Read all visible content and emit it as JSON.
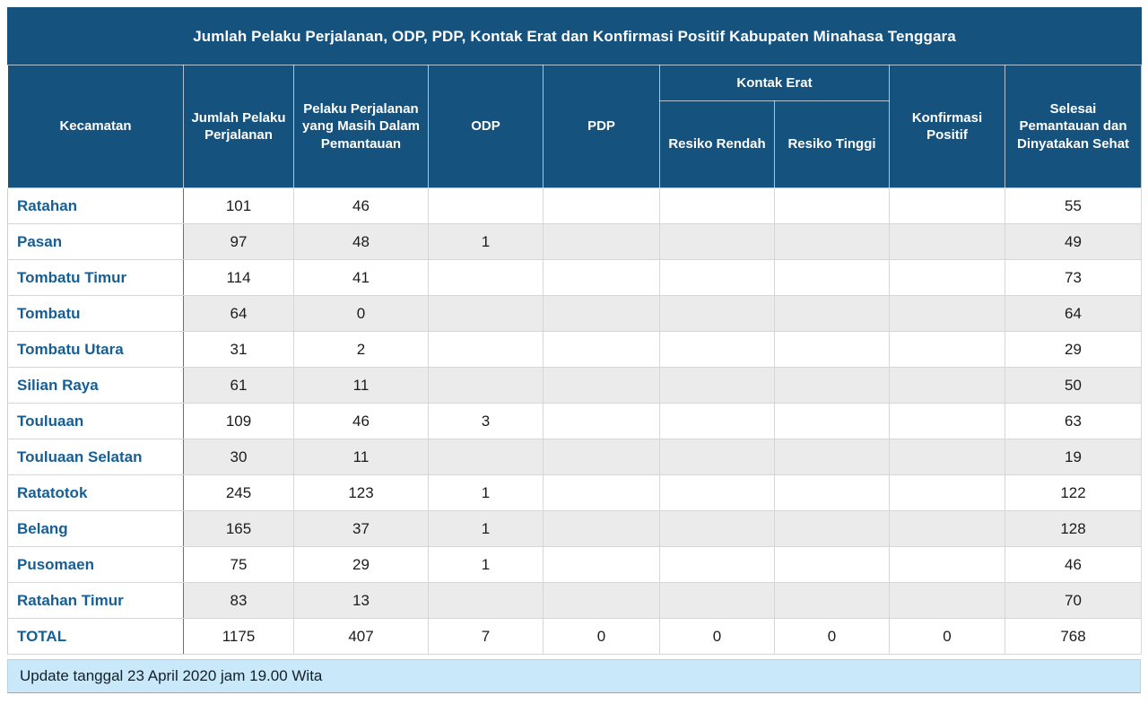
{
  "title": "Jumlah Pelaku Perjalanan, ODP, PDP, Kontak Erat dan Konfirmasi Positif Kabupaten Minahasa Tenggara",
  "table": {
    "header": {
      "kecamatan": "Kecamatan",
      "jumlah_pelaku_perjalanan": "Jumlah Pelaku Perjalanan",
      "pelaku_masih_pemantauan": "Pelaku Perjalanan yang Masih Dalam Pemantauan",
      "odp": "ODP",
      "pdp": "PDP",
      "kontak_erat": "Kontak Erat",
      "resiko_rendah": "Resiko Rendah",
      "resiko_tinggi": "Resiko Tinggi",
      "konfirmasi_positif": "Konfirmasi Positif",
      "selesai": "Selesai Pemantauan dan Dinyatakan Sehat"
    },
    "rows": [
      {
        "kecamatan": "Ratahan",
        "values": [
          "101",
          "46",
          "",
          "",
          "",
          "",
          "",
          "55"
        ]
      },
      {
        "kecamatan": "Pasan",
        "values": [
          "97",
          "48",
          "1",
          "",
          "",
          "",
          "",
          "49"
        ]
      },
      {
        "kecamatan": "Tombatu Timur",
        "values": [
          "114",
          "41",
          "",
          "",
          "",
          "",
          "",
          "73"
        ]
      },
      {
        "kecamatan": "Tombatu",
        "values": [
          "64",
          "0",
          "",
          "",
          "",
          "",
          "",
          "64"
        ]
      },
      {
        "kecamatan": "Tombatu Utara",
        "values": [
          "31",
          "2",
          "",
          "",
          "",
          "",
          "",
          "29"
        ]
      },
      {
        "kecamatan": "Silian Raya",
        "values": [
          "61",
          "11",
          "",
          "",
          "",
          "",
          "",
          "50"
        ]
      },
      {
        "kecamatan": "Touluaan",
        "values": [
          "109",
          "46",
          "3",
          "",
          "",
          "",
          "",
          "63"
        ]
      },
      {
        "kecamatan": "Touluaan Selatan",
        "values": [
          "30",
          "11",
          "",
          "",
          "",
          "",
          "",
          "19"
        ]
      },
      {
        "kecamatan": "Ratatotok",
        "values": [
          "245",
          "123",
          "1",
          "",
          "",
          "",
          "",
          "122"
        ]
      },
      {
        "kecamatan": "Belang",
        "values": [
          "165",
          "37",
          "1",
          "",
          "",
          "",
          "",
          "128"
        ]
      },
      {
        "kecamatan": "Pusomaen",
        "values": [
          "75",
          "29",
          "1",
          "",
          "",
          "",
          "",
          "46"
        ]
      },
      {
        "kecamatan": "Ratahan Timur",
        "values": [
          "83",
          "13",
          "",
          "",
          "",
          "",
          "",
          "70"
        ]
      }
    ],
    "total": {
      "label": "TOTAL",
      "values": [
        "1175",
        "407",
        "7",
        "0",
        "0",
        "0",
        "0",
        "768"
      ]
    }
  },
  "footer": {
    "update_text": "Update tanggal 23 April 2020 jam 19.00 Wita"
  },
  "colors": {
    "header_blue": "#15527e",
    "kecamatan_text_blue": "#175e93",
    "alt_row_gray": "#ebebeb",
    "footer_light_blue": "#c9e9fb",
    "body_text": "#1b1b1b"
  },
  "chart_data": {
    "type": "table",
    "title": "Jumlah Pelaku Perjalanan, ODP, PDP, Kontak Erat dan Konfirmasi Positif Kabupaten Minahasa Tenggara",
    "columns": [
      "Kecamatan",
      "Jumlah Pelaku Perjalanan",
      "Pelaku Perjalanan yang Masih Dalam Pemantauan",
      "ODP",
      "PDP",
      "Kontak Erat - Resiko Rendah",
      "Kontak Erat - Resiko Tinggi",
      "Konfirmasi Positif",
      "Selesai Pemantauan dan Dinyatakan Sehat"
    ],
    "categories": [
      "Ratahan",
      "Pasan",
      "Tombatu Timur",
      "Tombatu",
      "Tombatu Utara",
      "Silian Raya",
      "Touluaan",
      "Touluaan Selatan",
      "Ratatotok",
      "Belang",
      "Pusomaen",
      "Ratahan Timur"
    ],
    "series": [
      {
        "name": "Jumlah Pelaku Perjalanan",
        "values": [
          101,
          97,
          114,
          64,
          31,
          61,
          109,
          30,
          245,
          165,
          75,
          83
        ]
      },
      {
        "name": "Pelaku Perjalanan yang Masih Dalam Pemantauan",
        "values": [
          46,
          48,
          41,
          0,
          2,
          11,
          46,
          11,
          123,
          37,
          29,
          13
        ]
      },
      {
        "name": "ODP",
        "values": [
          null,
          1,
          null,
          null,
          null,
          null,
          3,
          null,
          1,
          1,
          1,
          null
        ]
      },
      {
        "name": "PDP",
        "values": [
          null,
          null,
          null,
          null,
          null,
          null,
          null,
          null,
          null,
          null,
          null,
          null
        ]
      },
      {
        "name": "Kontak Erat - Resiko Rendah",
        "values": [
          null,
          null,
          null,
          null,
          null,
          null,
          null,
          null,
          null,
          null,
          null,
          null
        ]
      },
      {
        "name": "Kontak Erat - Resiko Tinggi",
        "values": [
          null,
          null,
          null,
          null,
          null,
          null,
          null,
          null,
          null,
          null,
          null,
          null
        ]
      },
      {
        "name": "Konfirmasi Positif",
        "values": [
          null,
          null,
          null,
          null,
          null,
          null,
          null,
          null,
          null,
          null,
          null,
          null
        ]
      },
      {
        "name": "Selesai Pemantauan dan Dinyatakan Sehat",
        "values": [
          55,
          49,
          73,
          64,
          29,
          50,
          63,
          19,
          122,
          128,
          46,
          70
        ]
      }
    ],
    "totals": {
      "Jumlah Pelaku Perjalanan": 1175,
      "Pelaku Perjalanan yang Masih Dalam Pemantauan": 407,
      "ODP": 7,
      "PDP": 0,
      "Kontak Erat - Resiko Rendah": 0,
      "Kontak Erat - Resiko Tinggi": 0,
      "Konfirmasi Positif": 0,
      "Selesai Pemantauan dan Dinyatakan Sehat": 768
    }
  }
}
